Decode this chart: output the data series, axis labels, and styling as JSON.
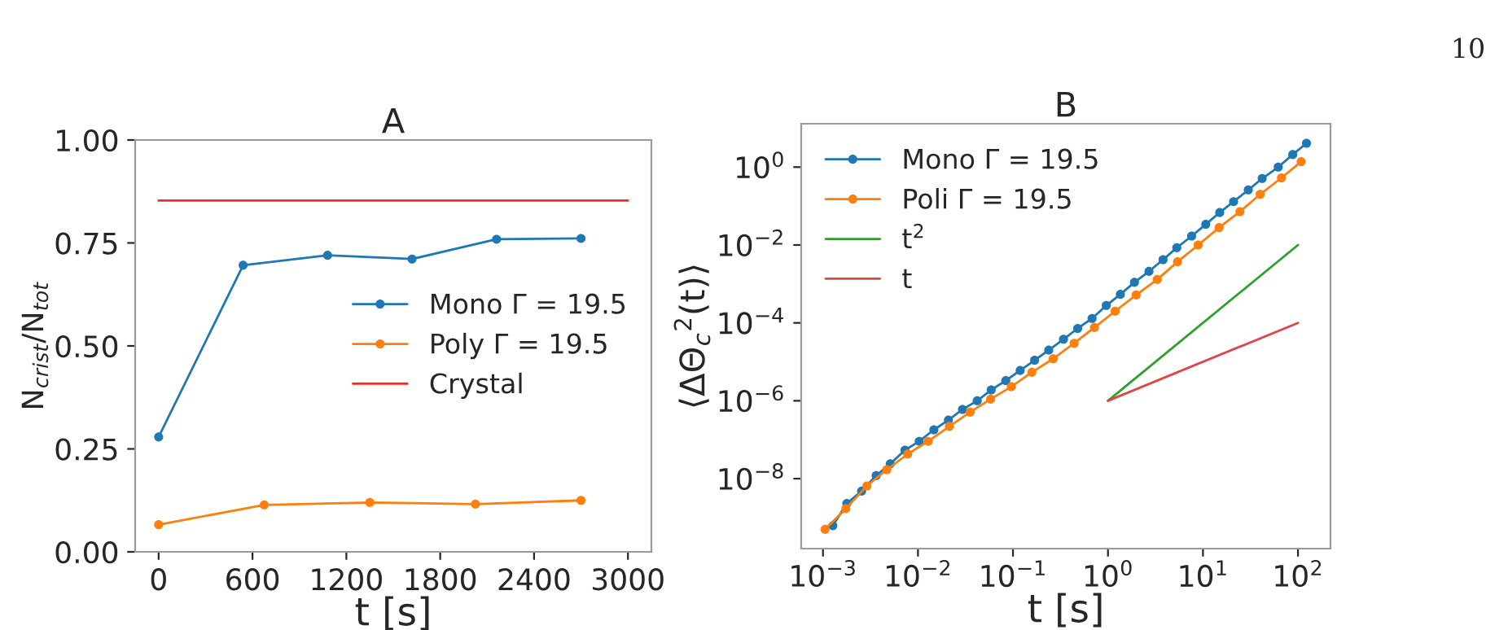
{
  "chart_data": [
    {
      "type": "line",
      "title": "A",
      "xlabel": "t [s]",
      "ylabel": "N$_{crist}$/N$_{tot}$",
      "xlim": [
        -150,
        3150
      ],
      "xticks": [
        0,
        600,
        1200,
        1800,
        2400,
        3000
      ],
      "ylim": [
        0,
        1
      ],
      "yticks": [
        {
          "value": 0,
          "label": "0.00"
        },
        {
          "value": 0.25,
          "label": "0.25"
        },
        {
          "value": 0.5,
          "label": "0.50"
        },
        {
          "value": 0.75,
          "label": "0.75"
        },
        {
          "value": 1,
          "label": "1.00"
        }
      ],
      "grid": false,
      "legend": "right",
      "marker": "circle",
      "series": [
        {
          "name": "Mono Γ = 19.5",
          "color": "#1f77b4",
          "x": [
            0,
            540,
            1080,
            1620,
            2160,
            2700
          ],
          "values": [
            0.279,
            0.696,
            0.72,
            0.711,
            0.759,
            0.761
          ]
        },
        {
          "name": "Poly Γ = 19.5",
          "color": "#ff7f0e",
          "x": [
            0,
            675,
            1350,
            2025,
            2700
          ],
          "values": [
            0.066,
            0.114,
            0.12,
            0.116,
            0.125
          ]
        },
        {
          "name": "Crystal",
          "color": "#e8302a",
          "marker": "none",
          "x": [
            0,
            3000
          ],
          "values": [
            0.853,
            0.853
          ]
        }
      ]
    },
    {
      "type": "line",
      "title": "B",
      "xlabel": "t [s]",
      "ylabel": "⟨ΔΘ$_{c}$$^{2}$(t)⟩",
      "log": "xy",
      "xlim": [
        0.00059,
        220
      ],
      "xticks": [
        {
          "value": 0.001,
          "label": "10$^{−3}$"
        },
        {
          "value": 0.01,
          "label": "10$^{−2}$"
        },
        {
          "value": 0.1,
          "label": "10$^{−1}$"
        },
        {
          "value": 1,
          "label": "10$^{0}$"
        },
        {
          "value": 10,
          "label": "10$^{1}$"
        },
        {
          "value": 100,
          "label": "10$^{2}$"
        }
      ],
      "ylim": [
        1.6e-10,
        13
      ],
      "yticks": [
        {
          "value": 1e-08,
          "label": "10$^{−8}$"
        },
        {
          "value": 1e-06,
          "label": "10$^{−6}$"
        },
        {
          "value": 0.0001,
          "label": "10$^{−4}$"
        },
        {
          "value": 0.01,
          "label": "10$^{−2}$"
        },
        {
          "value": 1,
          "label": "10$^{0}$"
        }
      ],
      "grid": false,
      "legend": "top left",
      "marker": "circle",
      "annotations": [
        "10"
      ],
      "series": [
        {
          "name": "Mono Γ = 19.5",
          "color": "#1f77b4",
          "x": [
            0.00127,
            0.00178,
            0.00255,
            0.00363,
            0.0051,
            0.0073,
            0.0103,
            0.0147,
            0.0209,
            0.0294,
            0.042,
            0.059,
            0.084,
            0.119,
            0.169,
            0.238,
            0.34,
            0.48,
            0.68,
            0.96,
            1.35,
            1.9,
            2.7,
            3.8,
            5.3,
            7.6,
            10.7,
            15,
            21,
            30,
            42,
            62,
            88,
            123
          ],
          "values": [
            6.2e-10,
            2.3e-09,
            4.8e-09,
            1.2e-08,
            2.4e-08,
            5.4e-08,
            9.1e-08,
            1.8e-07,
            3.2e-07,
            6e-07,
            1e-06,
            1.9e-06,
            3.3e-06,
            6e-06,
            1.1e-05,
            2e-05,
            3.8e-05,
            7.2e-05,
            0.00013,
            0.00028,
            0.00054,
            0.0011,
            0.0021,
            0.0042,
            0.0085,
            0.017,
            0.034,
            0.068,
            0.13,
            0.26,
            0.51,
            1.0,
            2.1,
            4.1
          ]
        },
        {
          "name": "Poli Γ = 19.5",
          "color": "#ff7f0e",
          "x": [
            0.00105,
            0.00174,
            0.0029,
            0.0047,
            0.0078,
            0.0128,
            0.0214,
            0.0354,
            0.058,
            0.096,
            0.158,
            0.265,
            0.44,
            0.72,
            1.19,
            1.98,
            3.3,
            5.4,
            8.9,
            14.8,
            24.5,
            40,
            67,
            108
          ],
          "values": [
            5e-10,
            1.7e-09,
            6.5e-09,
            1.7e-08,
            4.3e-08,
            9.1e-08,
            2.2e-07,
            5.1e-07,
            1.1e-06,
            2.3e-06,
            5.4e-06,
            1.2e-05,
            3e-05,
            7.6e-05,
            0.0002,
            0.00052,
            0.0013,
            0.0037,
            0.01,
            0.028,
            0.072,
            0.2,
            0.53,
            1.38
          ]
        },
        {
          "name": "t$^{2}$",
          "color": "#2ca02c",
          "marker": "none",
          "x": [
            1,
            100
          ],
          "values": [
            1e-06,
            0.01
          ]
        },
        {
          "name": "t",
          "color": "#e0444a",
          "marker": "none",
          "x": [
            1,
            100
          ],
          "values": [
            1e-06,
            0.0001
          ]
        }
      ]
    }
  ]
}
